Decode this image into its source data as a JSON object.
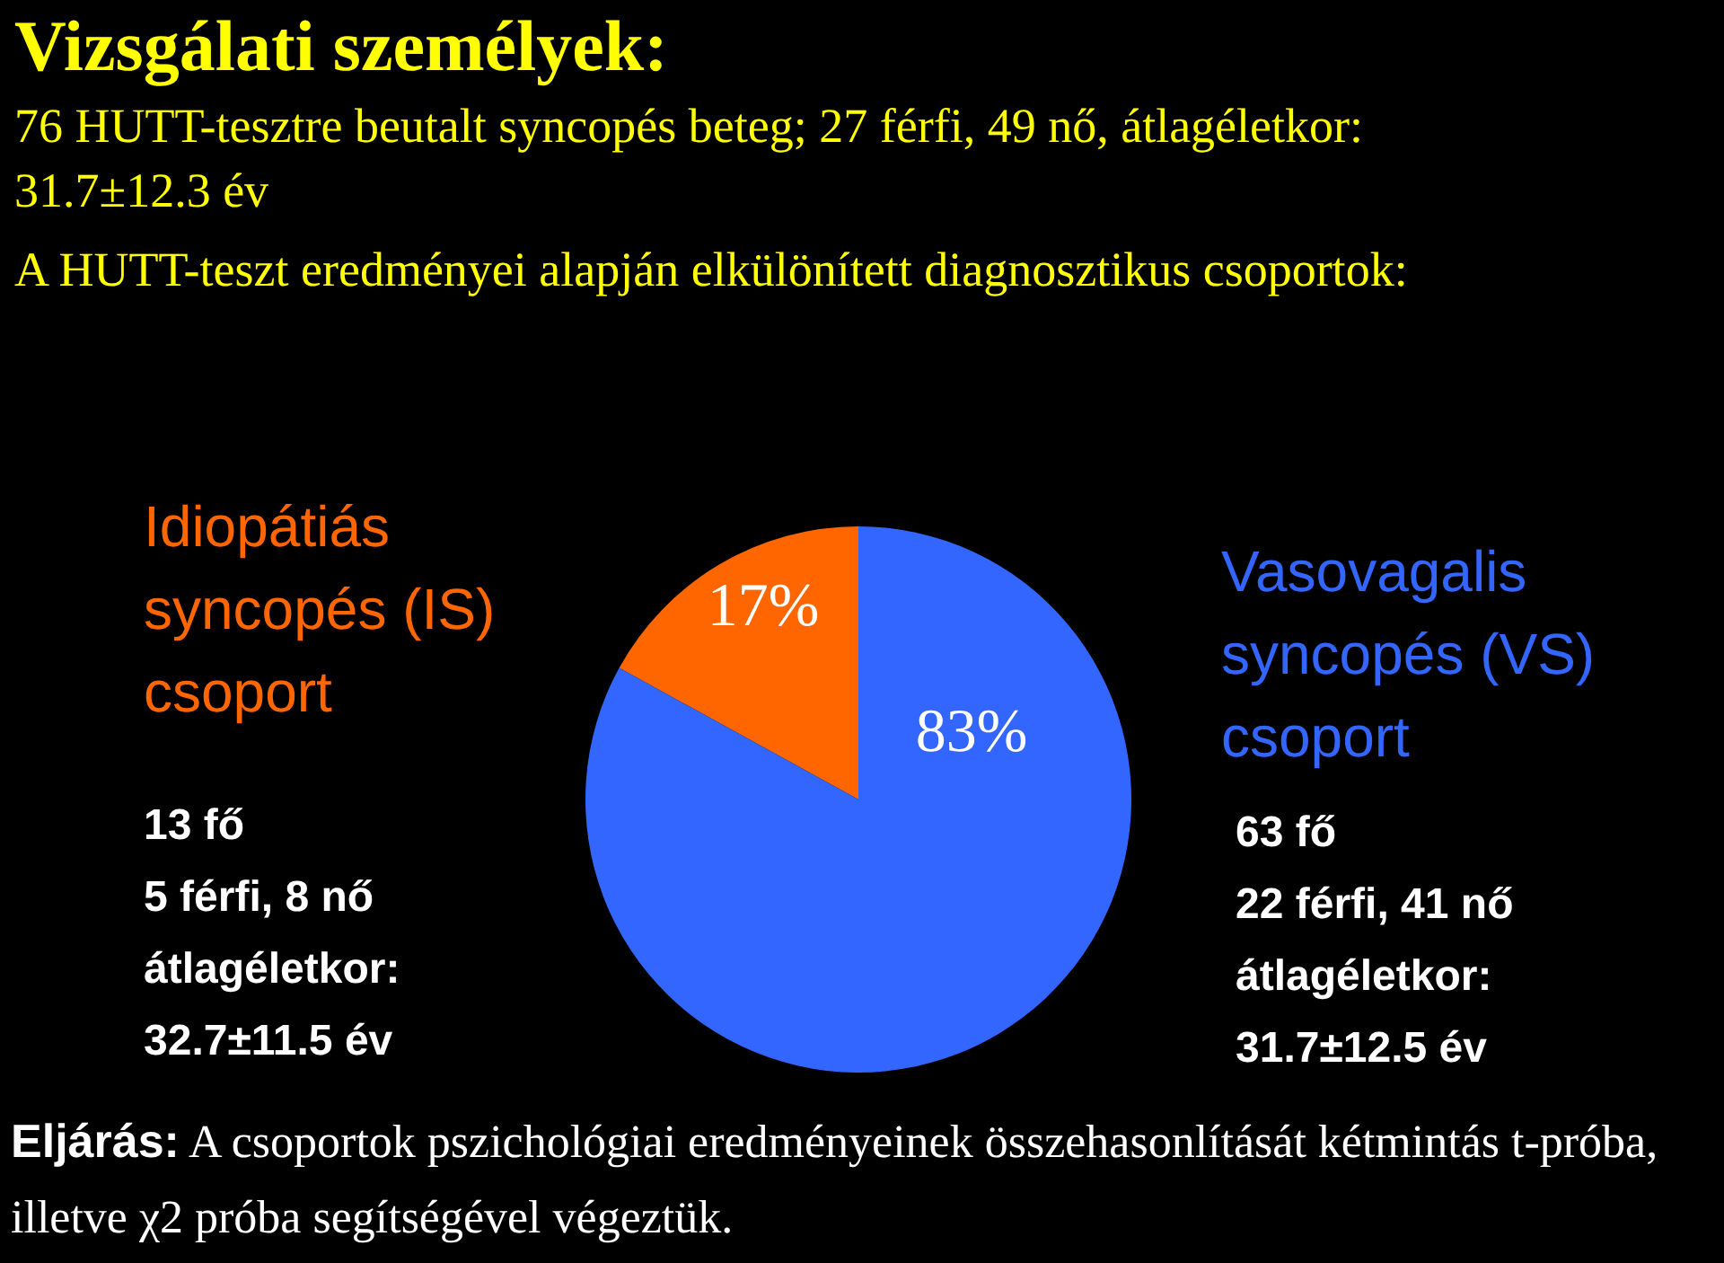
{
  "chart_data": {
    "type": "pie",
    "title": "Vizsgálati személyek:",
    "subtitle": "76 HUTT-tesztre beutalt syncopés beteg; 27 férfi, 49 nő, átlagéletkor: 31.7±12.3 év",
    "categories": [
      "Idiopátiás syncopés (IS) csoport",
      "Vasovagalis syncopés (VS) csoport"
    ],
    "values": [
      17,
      83
    ],
    "colors": [
      "#ff6600",
      "#3366ff"
    ],
    "value_labels": [
      "17%",
      "83%"
    ],
    "annotations": [
      "A HUTT-teszt eredményei alapján elkülönített diagnosztikus csoportok:",
      "13 fő\n5 férfi, 8 nő\nátlagéletkor:\n32.7±11.5 év",
      "63 fő\n22 férfi, 41 nő\nátlagéletkor:\n31.7±12.5 év",
      "Eljárás:",
      "A csoportok pszichológiai eredményeinek összehasonlítását kétmintás t-próba, illetve χ2 próba segítségével végeztük."
    ]
  }
}
